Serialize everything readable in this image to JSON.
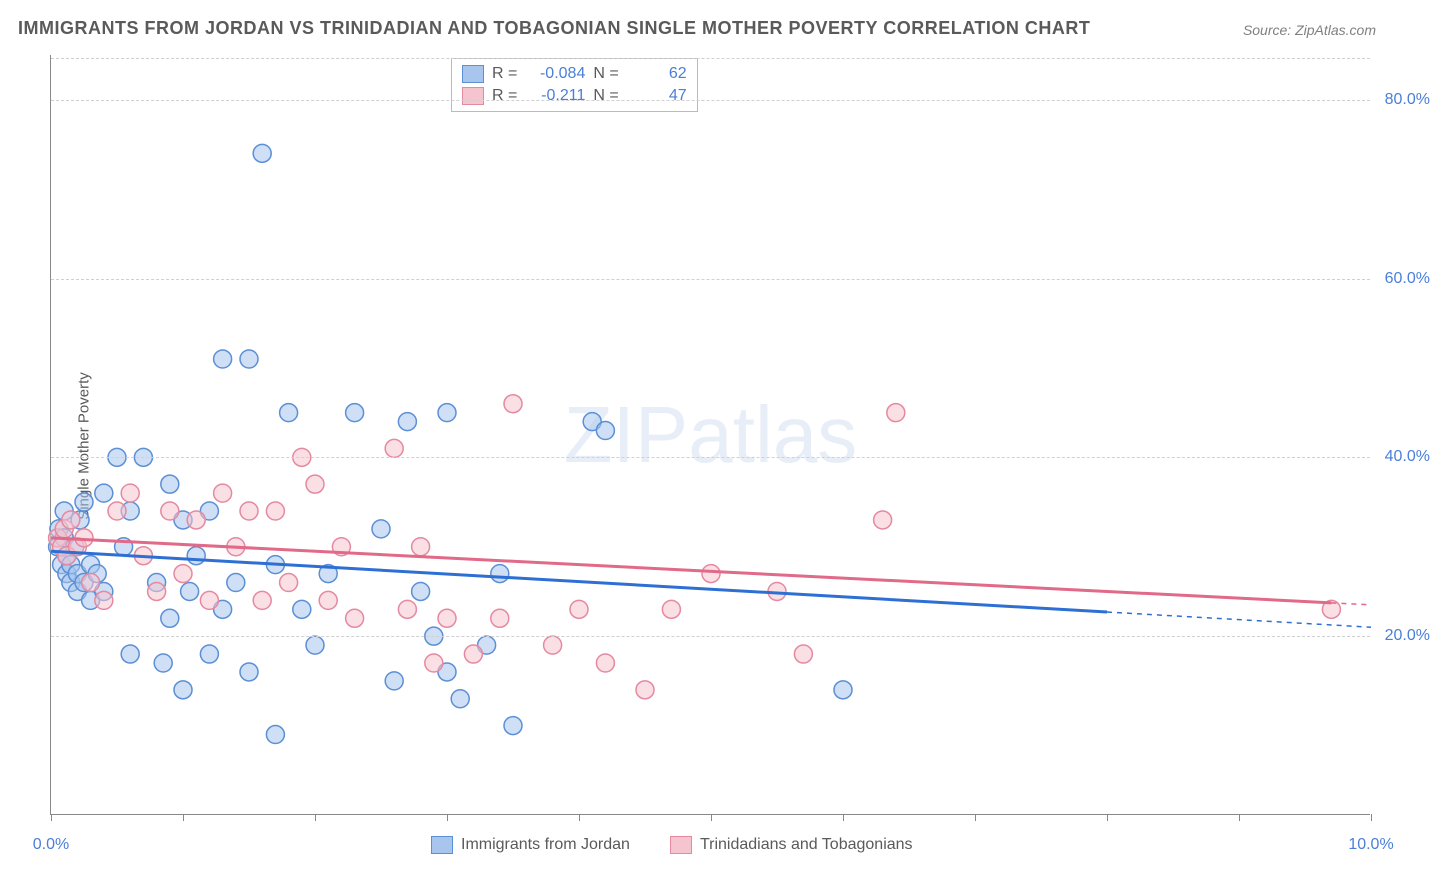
{
  "title": "IMMIGRANTS FROM JORDAN VS TRINIDADIAN AND TOBAGONIAN SINGLE MOTHER POVERTY CORRELATION CHART",
  "source": "Source: ZipAtlas.com",
  "y_axis_label": "Single Mother Poverty",
  "watermark": "ZIPatlas",
  "chart": {
    "type": "scatter",
    "xlim": [
      0,
      10
    ],
    "ylim": [
      0,
      85
    ],
    "x_ticks": [
      0,
      1,
      2,
      3,
      4,
      5,
      6,
      7,
      8,
      9,
      10
    ],
    "x_tick_labels": {
      "0": "0.0%",
      "10": "10.0%"
    },
    "y_ticks": [
      20,
      40,
      60,
      80
    ],
    "y_tick_labels": {
      "20": "20.0%",
      "40": "40.0%",
      "60": "60.0%",
      "80": "80.0%"
    },
    "grid_color": "#d0d0d0",
    "background_color": "#ffffff",
    "marker_radius": 9,
    "marker_opacity": 0.55,
    "series": [
      {
        "name": "Immigrants from Jordan",
        "color_fill": "#a8c5ed",
        "color_stroke": "#5b8fd6",
        "R": "-0.084",
        "N": "62",
        "trend": {
          "y_at_x0": 29.5,
          "y_at_xmax": 21.0,
          "solid_until_x": 8.0,
          "color": "#2e6fd4",
          "width": 3
        },
        "points": [
          [
            0.05,
            30
          ],
          [
            0.06,
            32
          ],
          [
            0.08,
            28
          ],
          [
            0.1,
            31
          ],
          [
            0.1,
            34
          ],
          [
            0.12,
            27
          ],
          [
            0.12,
            29
          ],
          [
            0.15,
            26
          ],
          [
            0.15,
            28
          ],
          [
            0.18,
            30
          ],
          [
            0.2,
            25
          ],
          [
            0.2,
            27
          ],
          [
            0.22,
            33
          ],
          [
            0.25,
            26
          ],
          [
            0.25,
            35
          ],
          [
            0.3,
            24
          ],
          [
            0.3,
            28
          ],
          [
            0.35,
            27
          ],
          [
            0.4,
            36
          ],
          [
            0.4,
            25
          ],
          [
            0.5,
            40
          ],
          [
            0.55,
            30
          ],
          [
            0.6,
            18
          ],
          [
            0.6,
            34
          ],
          [
            0.7,
            40
          ],
          [
            0.8,
            26
          ],
          [
            0.85,
            17
          ],
          [
            0.9,
            37
          ],
          [
            0.9,
            22
          ],
          [
            1.0,
            33
          ],
          [
            1.0,
            14
          ],
          [
            1.05,
            25
          ],
          [
            1.1,
            29
          ],
          [
            1.2,
            34
          ],
          [
            1.2,
            18
          ],
          [
            1.3,
            51
          ],
          [
            1.3,
            23
          ],
          [
            1.4,
            26
          ],
          [
            1.5,
            51
          ],
          [
            1.5,
            16
          ],
          [
            1.6,
            74
          ],
          [
            1.7,
            28
          ],
          [
            1.7,
            9
          ],
          [
            1.8,
            45
          ],
          [
            1.9,
            23
          ],
          [
            2.0,
            19
          ],
          [
            2.1,
            27
          ],
          [
            2.3,
            45
          ],
          [
            2.5,
            32
          ],
          [
            2.6,
            15
          ],
          [
            2.7,
            44
          ],
          [
            2.8,
            25
          ],
          [
            2.9,
            20
          ],
          [
            3.0,
            45
          ],
          [
            3.0,
            16
          ],
          [
            3.1,
            13
          ],
          [
            3.3,
            19
          ],
          [
            3.4,
            27
          ],
          [
            3.5,
            10
          ],
          [
            4.1,
            44
          ],
          [
            4.2,
            43
          ],
          [
            6.0,
            14
          ]
        ]
      },
      {
        "name": "Trinidadians and Tobagonians",
        "color_fill": "#f5c4cf",
        "color_stroke": "#e589a0",
        "R": "-0.211",
        "N": "47",
        "trend": {
          "y_at_x0": 31.0,
          "y_at_xmax": 23.5,
          "solid_until_x": 9.7,
          "color": "#e06a88",
          "width": 3
        },
        "points": [
          [
            0.05,
            31
          ],
          [
            0.08,
            30
          ],
          [
            0.1,
            32
          ],
          [
            0.12,
            29
          ],
          [
            0.15,
            33
          ],
          [
            0.2,
            30
          ],
          [
            0.25,
            31
          ],
          [
            0.3,
            26
          ],
          [
            0.4,
            24
          ],
          [
            0.5,
            34
          ],
          [
            0.6,
            36
          ],
          [
            0.7,
            29
          ],
          [
            0.8,
            25
          ],
          [
            0.9,
            34
          ],
          [
            1.0,
            27
          ],
          [
            1.1,
            33
          ],
          [
            1.2,
            24
          ],
          [
            1.3,
            36
          ],
          [
            1.4,
            30
          ],
          [
            1.5,
            34
          ],
          [
            1.6,
            24
          ],
          [
            1.7,
            34
          ],
          [
            1.8,
            26
          ],
          [
            1.9,
            40
          ],
          [
            2.0,
            37
          ],
          [
            2.1,
            24
          ],
          [
            2.2,
            30
          ],
          [
            2.3,
            22
          ],
          [
            2.6,
            41
          ],
          [
            2.7,
            23
          ],
          [
            2.8,
            30
          ],
          [
            2.9,
            17
          ],
          [
            3.0,
            22
          ],
          [
            3.2,
            18
          ],
          [
            3.4,
            22
          ],
          [
            3.5,
            46
          ],
          [
            3.8,
            19
          ],
          [
            4.0,
            23
          ],
          [
            4.2,
            17
          ],
          [
            4.5,
            14
          ],
          [
            4.7,
            23
          ],
          [
            5.0,
            27
          ],
          [
            5.5,
            25
          ],
          [
            5.7,
            18
          ],
          [
            6.3,
            33
          ],
          [
            6.4,
            45
          ],
          [
            9.7,
            23
          ]
        ]
      }
    ]
  },
  "stats_box": {
    "rows": [
      {
        "swatch_fill": "#a8c5ed",
        "swatch_stroke": "#5b8fd6",
        "R_label": "R =",
        "R": "-0.084",
        "N_label": "N =",
        "N": "62"
      },
      {
        "swatch_fill": "#f5c4cf",
        "swatch_stroke": "#e589a0",
        "R_label": "R =",
        "R": "-0.211",
        "N_label": "N =",
        "N": "47"
      }
    ]
  },
  "bottom_legend": [
    {
      "swatch_fill": "#a8c5ed",
      "swatch_stroke": "#5b8fd6",
      "label": "Immigrants from Jordan"
    },
    {
      "swatch_fill": "#f5c4cf",
      "swatch_stroke": "#e589a0",
      "label": "Trinidadians and Tobagonians"
    }
  ]
}
